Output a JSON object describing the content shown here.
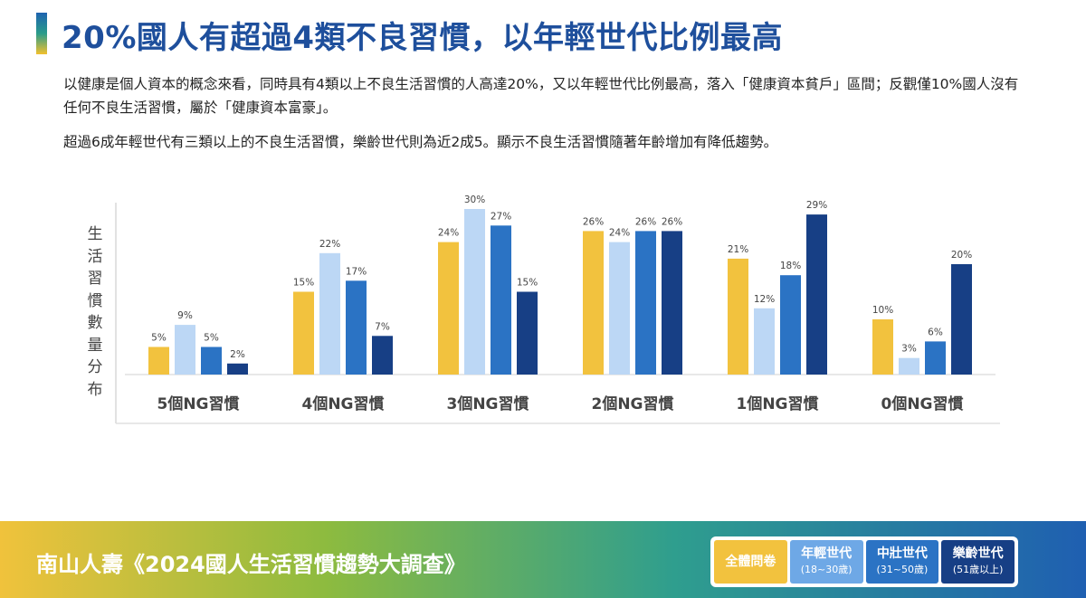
{
  "title": "20%國人有超過4類不良習慣，以年輕世代比例最高",
  "paragraphs": [
    "以健康是個人資本的概念來看，同時具有4類以上不良生活習慣的人高達20%，又以年輕世代比例最高，落入「健康資本貧戶」區間；反觀僅10%國人沒有任何不良生活習慣，屬於「健康資本富豪」。",
    "超過6成年輕世代有三類以上的不良生活習慣，樂齡世代則為近2成5。顯示不良生活習慣隨著年齡增加有降低趨勢。"
  ],
  "chart_data": {
    "type": "bar",
    "ylabel": "生活習慣數量分布",
    "categories": [
      "5個NG習慣",
      "4個NG習慣",
      "3個NG習慣",
      "2個NG習慣",
      "1個NG習慣",
      "0個NG習慣"
    ],
    "series": [
      {
        "name": "全體問卷",
        "color": "#f2c23e",
        "values": [
          5,
          15,
          24,
          26,
          21,
          10
        ]
      },
      {
        "name": "年輕世代",
        "color": "#bcd7f5",
        "values": [
          9,
          22,
          30,
          24,
          12,
          3
        ]
      },
      {
        "name": "中壯世代",
        "color": "#2b73c4",
        "values": [
          5,
          17,
          27,
          26,
          18,
          6
        ]
      },
      {
        "name": "樂齡世代",
        "color": "#173f85",
        "values": [
          2,
          7,
          15,
          26,
          29,
          20
        ]
      }
    ],
    "value_suffix": "%",
    "grid": false,
    "legend_position": "bottom-right"
  },
  "footer": {
    "title": "南山人壽《2024國人生活習慣趨勢大調查》",
    "legend": [
      {
        "label": "全體問卷",
        "sub": ""
      },
      {
        "label": "年輕世代",
        "sub": "(18~30歲)"
      },
      {
        "label": "中壯世代",
        "sub": "(31~50歲)"
      },
      {
        "label": "樂齡世代",
        "sub": "(51歲以上)"
      }
    ]
  }
}
